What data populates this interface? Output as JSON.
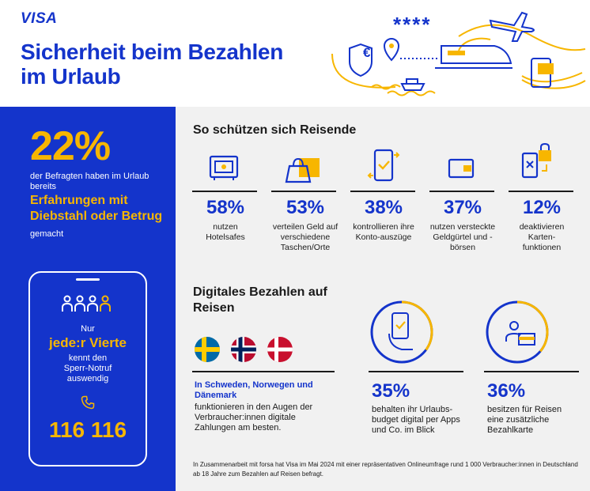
{
  "header": {
    "logo": "VISA",
    "title_line1": "Sicherheit beim Bezahlen",
    "title_line2": "im Urlaub",
    "stars": "****",
    "euro": "€"
  },
  "left": {
    "percent": "22%",
    "text": "der Befragten haben im Urlaub bereits",
    "highlight": "Erfahrungen mit Diebstahl oder Betrug",
    "suffix": " gemacht",
    "phone": {
      "line1": "Nur",
      "highlight": "jede:r Vierte",
      "line2": "kennt den Sperr-Notruf auswendig",
      "number": "116 116"
    }
  },
  "protect": {
    "title": "So schützen sich Reisende",
    "items": [
      {
        "icon": "safe-icon",
        "pct": "58%",
        "label": "nutzen Hotelsafes"
      },
      {
        "icon": "bags-icon",
        "pct": "53%",
        "label": "verteilen Geld auf verschiedene Taschen/Orte"
      },
      {
        "icon": "phone-check-icon",
        "pct": "38%",
        "label": "kontrollieren ihre Konto-auszüge"
      },
      {
        "icon": "wallet-icon",
        "pct": "37%",
        "label": "nutzen versteckte Geldgürtel und -börsen"
      },
      {
        "icon": "card-lock-icon",
        "pct": "12%",
        "label": "deaktivieren Karten-funktionen"
      }
    ]
  },
  "digital": {
    "title": "Digitales Bezahlen auf Reisen",
    "countries_highlight": "In Schweden, Norwegen und Dänemark",
    "countries_text": "funktionieren in den Augen der Verbraucher:innen digitale Zahlungen am besten.",
    "stat1": {
      "pct": "35%",
      "label": "behalten ihr Urlaubs-budget digital per Apps und Co. im Blick",
      "fraction": 0.35
    },
    "stat2": {
      "pct": "36%",
      "label": "besitzen für Reisen eine zusätzliche Bezahlkarte",
      "fraction": 0.36
    }
  },
  "footer": "In Zusammenarbeit mit forsa hat Visa im Mai 2024 mit einer repräsentativen Onlineumfrage rund 1 000 Verbraucher:innen in Deutschland ab 18 Jahre zum Bezahlen auf Reisen befragt.",
  "colors": {
    "brand": "#1434CB",
    "accent": "#F7B600",
    "panel": "#F1F1F1"
  }
}
